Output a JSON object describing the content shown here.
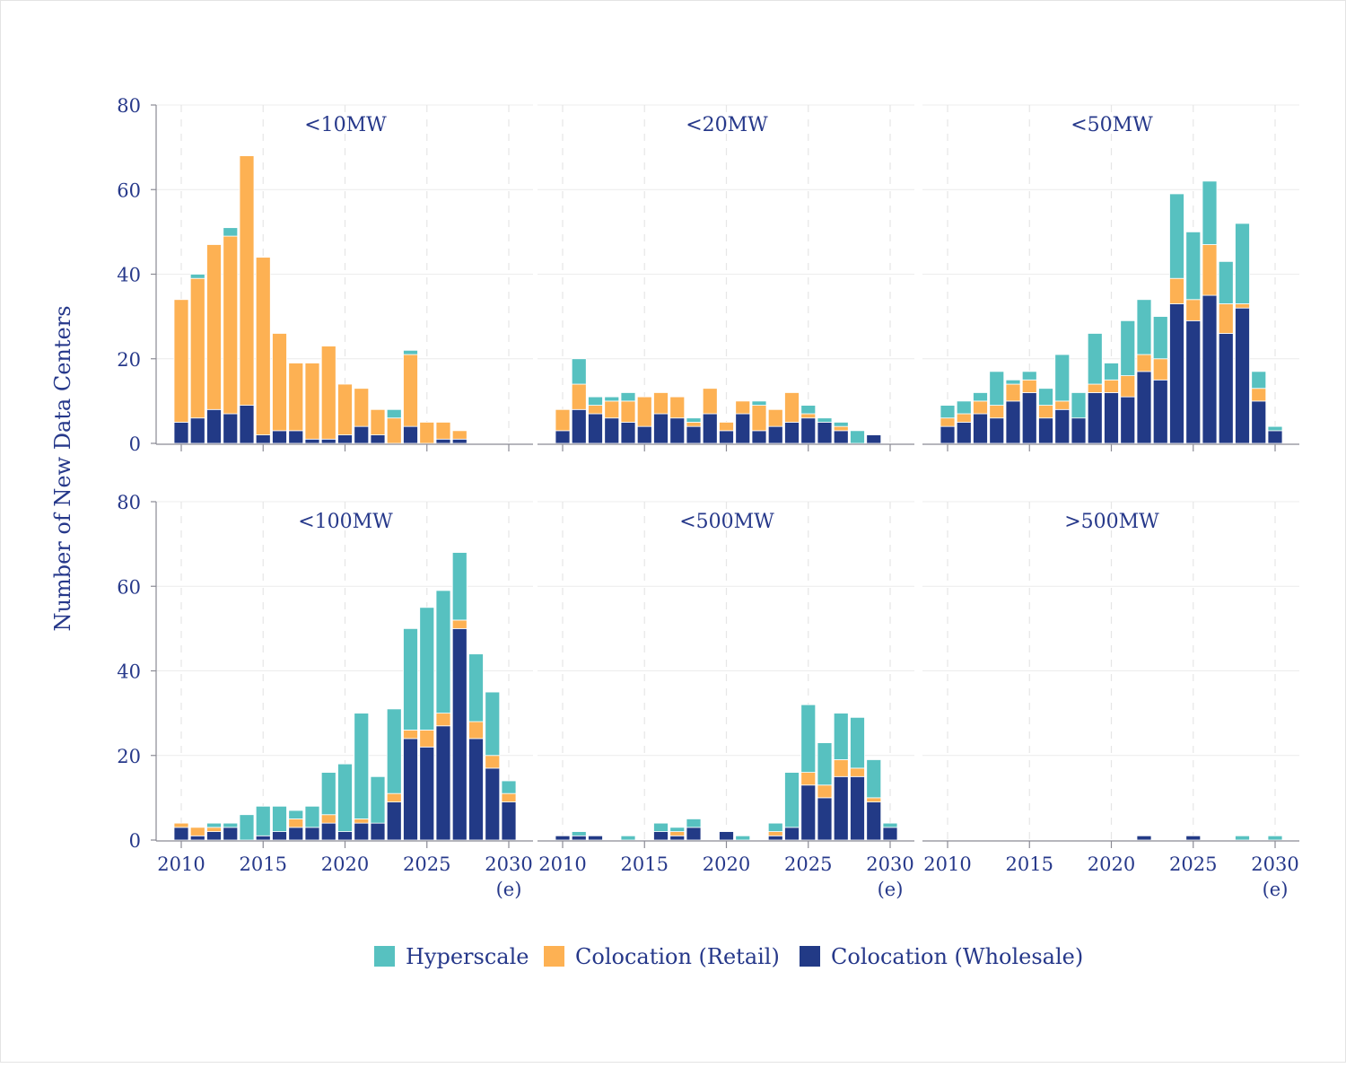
{
  "chart_data": {
    "type": "bar",
    "stacked": true,
    "ylabel": "Number of New Data Centers",
    "xlabel": "",
    "ylim": [
      0,
      80
    ],
    "y_ticks": [
      "0",
      "20",
      "40",
      "60",
      "80"
    ],
    "x_ticks": [
      "2010",
      "2015",
      "2020",
      "2025",
      "2030"
    ],
    "x_tick_note": "(e)",
    "grid": true,
    "legend_position": "bottom",
    "years": [
      2010,
      2011,
      2012,
      2013,
      2014,
      2015,
      2016,
      2017,
      2018,
      2019,
      2020,
      2021,
      2022,
      2023,
      2024,
      2025,
      2026,
      2027,
      2028,
      2029,
      2030
    ],
    "legend": [
      {
        "name": "Hyperscale",
        "color": "#57c1c0"
      },
      {
        "name": "Colocation (Retail)",
        "color": "#fdb153"
      },
      {
        "name": "Colocation (Wholesale)",
        "color": "#223a86"
      }
    ],
    "panels": [
      {
        "title": "<10MW",
        "wholesale": [
          5,
          6,
          8,
          7,
          9,
          2,
          3,
          3,
          1,
          1,
          2,
          4,
          2,
          0,
          4,
          0,
          1,
          1,
          0,
          0,
          0
        ],
        "retail": [
          29,
          33,
          39,
          42,
          59,
          42,
          23,
          16,
          18,
          22,
          12,
          9,
          6,
          6,
          17,
          5,
          4,
          2,
          0,
          0,
          0
        ],
        "hyperscale": [
          0,
          1,
          0,
          2,
          0,
          0,
          0,
          0,
          0,
          0,
          0,
          0,
          0,
          2,
          1,
          0,
          0,
          0,
          0,
          0,
          0
        ]
      },
      {
        "title": "<20MW",
        "wholesale": [
          3,
          8,
          7,
          6,
          5,
          4,
          7,
          6,
          4,
          7,
          3,
          7,
          3,
          4,
          5,
          6,
          5,
          3,
          0,
          2,
          0
        ],
        "retail": [
          5,
          6,
          2,
          4,
          5,
          7,
          5,
          5,
          1,
          6,
          2,
          3,
          6,
          4,
          7,
          1,
          0,
          1,
          0,
          0,
          0
        ],
        "hyperscale": [
          0,
          6,
          2,
          1,
          2,
          0,
          0,
          0,
          1,
          0,
          0,
          0,
          1,
          0,
          0,
          2,
          1,
          1,
          3,
          0,
          0
        ]
      },
      {
        "title": "<50MW",
        "wholesale": [
          4,
          5,
          7,
          6,
          10,
          12,
          6,
          8,
          6,
          12,
          12,
          11,
          17,
          15,
          33,
          29,
          35,
          26,
          32,
          10,
          3
        ],
        "retail": [
          2,
          2,
          3,
          3,
          4,
          3,
          3,
          2,
          0,
          2,
          3,
          5,
          4,
          5,
          6,
          5,
          12,
          7,
          1,
          3,
          0
        ],
        "hyperscale": [
          3,
          3,
          2,
          8,
          1,
          2,
          4,
          11,
          6,
          12,
          4,
          13,
          13,
          10,
          20,
          16,
          15,
          10,
          19,
          4,
          1
        ]
      },
      {
        "title": "<100MW",
        "wholesale": [
          3,
          1,
          2,
          3,
          0,
          1,
          2,
          3,
          3,
          4,
          2,
          4,
          4,
          9,
          24,
          22,
          27,
          50,
          24,
          17,
          9
        ],
        "retail": [
          1,
          2,
          1,
          0,
          0,
          0,
          0,
          2,
          0,
          2,
          0,
          1,
          0,
          2,
          2,
          4,
          3,
          2,
          4,
          3,
          2
        ],
        "hyperscale": [
          0,
          0,
          1,
          1,
          6,
          7,
          6,
          2,
          5,
          10,
          16,
          25,
          11,
          20,
          24,
          29,
          29,
          16,
          16,
          15,
          3
        ]
      },
      {
        "title": "<500MW",
        "wholesale": [
          1,
          1,
          1,
          0,
          0,
          0,
          2,
          1,
          3,
          0,
          2,
          0,
          0,
          1,
          3,
          13,
          10,
          15,
          15,
          9,
          3
        ],
        "retail": [
          0,
          0,
          0,
          0,
          0,
          0,
          0,
          1,
          0,
          0,
          0,
          0,
          0,
          1,
          0,
          3,
          3,
          4,
          2,
          1,
          0
        ],
        "hyperscale": [
          0,
          1,
          0,
          0,
          1,
          0,
          2,
          1,
          2,
          0,
          0,
          1,
          0,
          2,
          13,
          16,
          10,
          11,
          12,
          9,
          1
        ]
      },
      {
        "title": ">500MW",
        "wholesale": [
          0,
          0,
          0,
          0,
          0,
          0,
          0,
          0,
          0,
          0,
          0,
          0,
          1,
          0,
          0,
          1,
          0,
          0,
          0,
          0,
          0
        ],
        "retail": [
          0,
          0,
          0,
          0,
          0,
          0,
          0,
          0,
          0,
          0,
          0,
          0,
          0,
          0,
          0,
          0,
          0,
          0,
          0,
          0,
          0
        ],
        "hyperscale": [
          0,
          0,
          0,
          0,
          0,
          0,
          0,
          0,
          0,
          0,
          0,
          0,
          0,
          0,
          0,
          0,
          0,
          0,
          1,
          0,
          1
        ]
      }
    ]
  }
}
